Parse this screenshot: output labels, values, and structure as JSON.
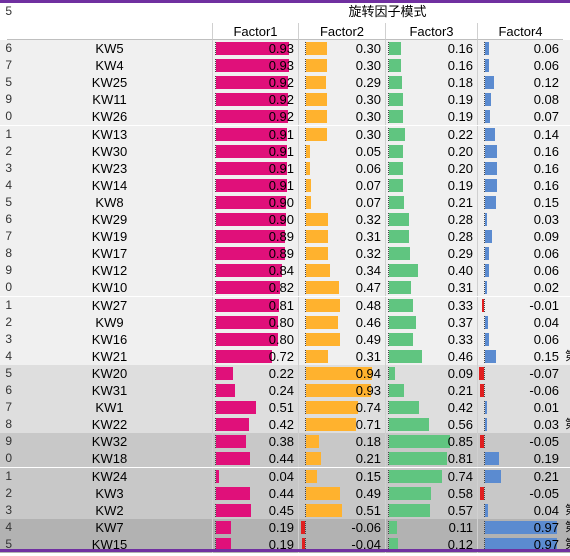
{
  "title": "旋转因子模式",
  "headers": [
    "",
    "Factor1",
    "Factor2",
    "Factor3",
    "Factor4"
  ],
  "left_gutter": {
    "top_digit": "5",
    "digits": [
      "6",
      "7",
      "5",
      "9",
      "0",
      "1",
      "2",
      "3",
      "4",
      "5",
      "6",
      "7",
      "8",
      "9",
      "0",
      "1",
      "2",
      "3",
      "4",
      "5",
      "6",
      "7",
      "8",
      "9",
      "0",
      "1",
      "2",
      "3",
      "4",
      "5"
    ]
  },
  "colors": {
    "factor1": "#e0107a",
    "factor2": "#ffb22e",
    "factor3": "#60c580",
    "factor4": "#5b8bd0",
    "negative": "#e02020",
    "accent": "#7030a0"
  },
  "rows": [
    {
      "label": "KW5",
      "v": [
        "0.93",
        "0.30",
        "0.16",
        "0.06"
      ],
      "group": 0,
      "extra": ""
    },
    {
      "label": "KW4",
      "v": [
        "0.93",
        "0.30",
        "0.16",
        "0.06"
      ],
      "group": 0,
      "extra": ""
    },
    {
      "label": "KW25",
      "v": [
        "0.92",
        "0.29",
        "0.18",
        "0.12"
      ],
      "group": 0,
      "extra": ""
    },
    {
      "label": "KW11",
      "v": [
        "0.92",
        "0.30",
        "0.19",
        "0.08"
      ],
      "group": 0,
      "extra": ""
    },
    {
      "label": "KW26",
      "v": [
        "0.92",
        "0.30",
        "0.19",
        "0.07"
      ],
      "group": 0,
      "extra": ""
    },
    {
      "label": "KW13",
      "v": [
        "0.91",
        "0.30",
        "0.22",
        "0.14"
      ],
      "group": 0,
      "extra": ""
    },
    {
      "label": "KW30",
      "v": [
        "0.91",
        "0.05",
        "0.20",
        "0.16"
      ],
      "group": 0,
      "extra": ""
    },
    {
      "label": "KW23",
      "v": [
        "0.91",
        "0.06",
        "0.20",
        "0.16"
      ],
      "group": 0,
      "extra": ""
    },
    {
      "label": "KW14",
      "v": [
        "0.91",
        "0.07",
        "0.19",
        "0.16"
      ],
      "group": 0,
      "extra": ""
    },
    {
      "label": "KW8",
      "v": [
        "0.90",
        "0.07",
        "0.21",
        "0.15"
      ],
      "group": 0,
      "extra": ""
    },
    {
      "label": "KW29",
      "v": [
        "0.90",
        "0.32",
        "0.28",
        "0.03"
      ],
      "group": 0,
      "extra": ""
    },
    {
      "label": "KW19",
      "v": [
        "0.89",
        "0.31",
        "0.28",
        "0.09"
      ],
      "group": 0,
      "extra": ""
    },
    {
      "label": "KW17",
      "v": [
        "0.89",
        "0.32",
        "0.29",
        "0.06"
      ],
      "group": 0,
      "extra": ""
    },
    {
      "label": "KW12",
      "v": [
        "0.84",
        "0.34",
        "0.40",
        "0.06"
      ],
      "group": 0,
      "extra": ""
    },
    {
      "label": "KW10",
      "v": [
        "0.82",
        "0.47",
        "0.31",
        "0.02"
      ],
      "group": 0,
      "extra": ""
    },
    {
      "label": "KW27",
      "v": [
        "0.81",
        "0.48",
        "0.33",
        "-0.01"
      ],
      "group": 0,
      "extra": ""
    },
    {
      "label": "KW9",
      "v": [
        "0.80",
        "0.46",
        "0.37",
        "0.04"
      ],
      "group": 0,
      "extra": ""
    },
    {
      "label": "KW16",
      "v": [
        "0.80",
        "0.49",
        "0.33",
        "0.06"
      ],
      "group": 0,
      "extra": ""
    },
    {
      "label": "KW21",
      "v": [
        "0.72",
        "0.31",
        "0.46",
        "0.15"
      ],
      "group": 0,
      "extra": "第"
    },
    {
      "label": "KW20",
      "v": [
        "0.22",
        "0.94",
        "0.09",
        "-0.07"
      ],
      "group": 1,
      "extra": ""
    },
    {
      "label": "KW31",
      "v": [
        "0.24",
        "0.93",
        "0.21",
        "-0.06"
      ],
      "group": 1,
      "extra": ""
    },
    {
      "label": "KW1",
      "v": [
        "0.51",
        "0.74",
        "0.42",
        "0.01"
      ],
      "group": 1,
      "extra": ""
    },
    {
      "label": "KW22",
      "v": [
        "0.42",
        "0.71",
        "0.56",
        "0.03"
      ],
      "group": 1,
      "extra": "第"
    },
    {
      "label": "KW32",
      "v": [
        "0.38",
        "0.18",
        "0.85",
        "-0.05"
      ],
      "group": 2,
      "extra": ""
    },
    {
      "label": "KW18",
      "v": [
        "0.44",
        "0.21",
        "0.81",
        "0.19"
      ],
      "group": 2,
      "extra": ""
    },
    {
      "label": "KW24",
      "v": [
        "0.04",
        "0.15",
        "0.74",
        "0.21"
      ],
      "group": 2,
      "extra": ""
    },
    {
      "label": "KW3",
      "v": [
        "0.44",
        "0.49",
        "0.58",
        "-0.05"
      ],
      "group": 2,
      "extra": ""
    },
    {
      "label": "KW2",
      "v": [
        "0.45",
        "0.51",
        "0.57",
        "0.04"
      ],
      "group": 2,
      "extra": "第"
    },
    {
      "label": "KW7",
      "v": [
        "0.19",
        "-0.06",
        "0.11",
        "0.97"
      ],
      "group": 3,
      "extra": "第"
    },
    {
      "label": "KW15",
      "v": [
        "0.19",
        "-0.04",
        "0.12",
        "0.97"
      ],
      "group": 3,
      "extra": "第"
    }
  ]
}
